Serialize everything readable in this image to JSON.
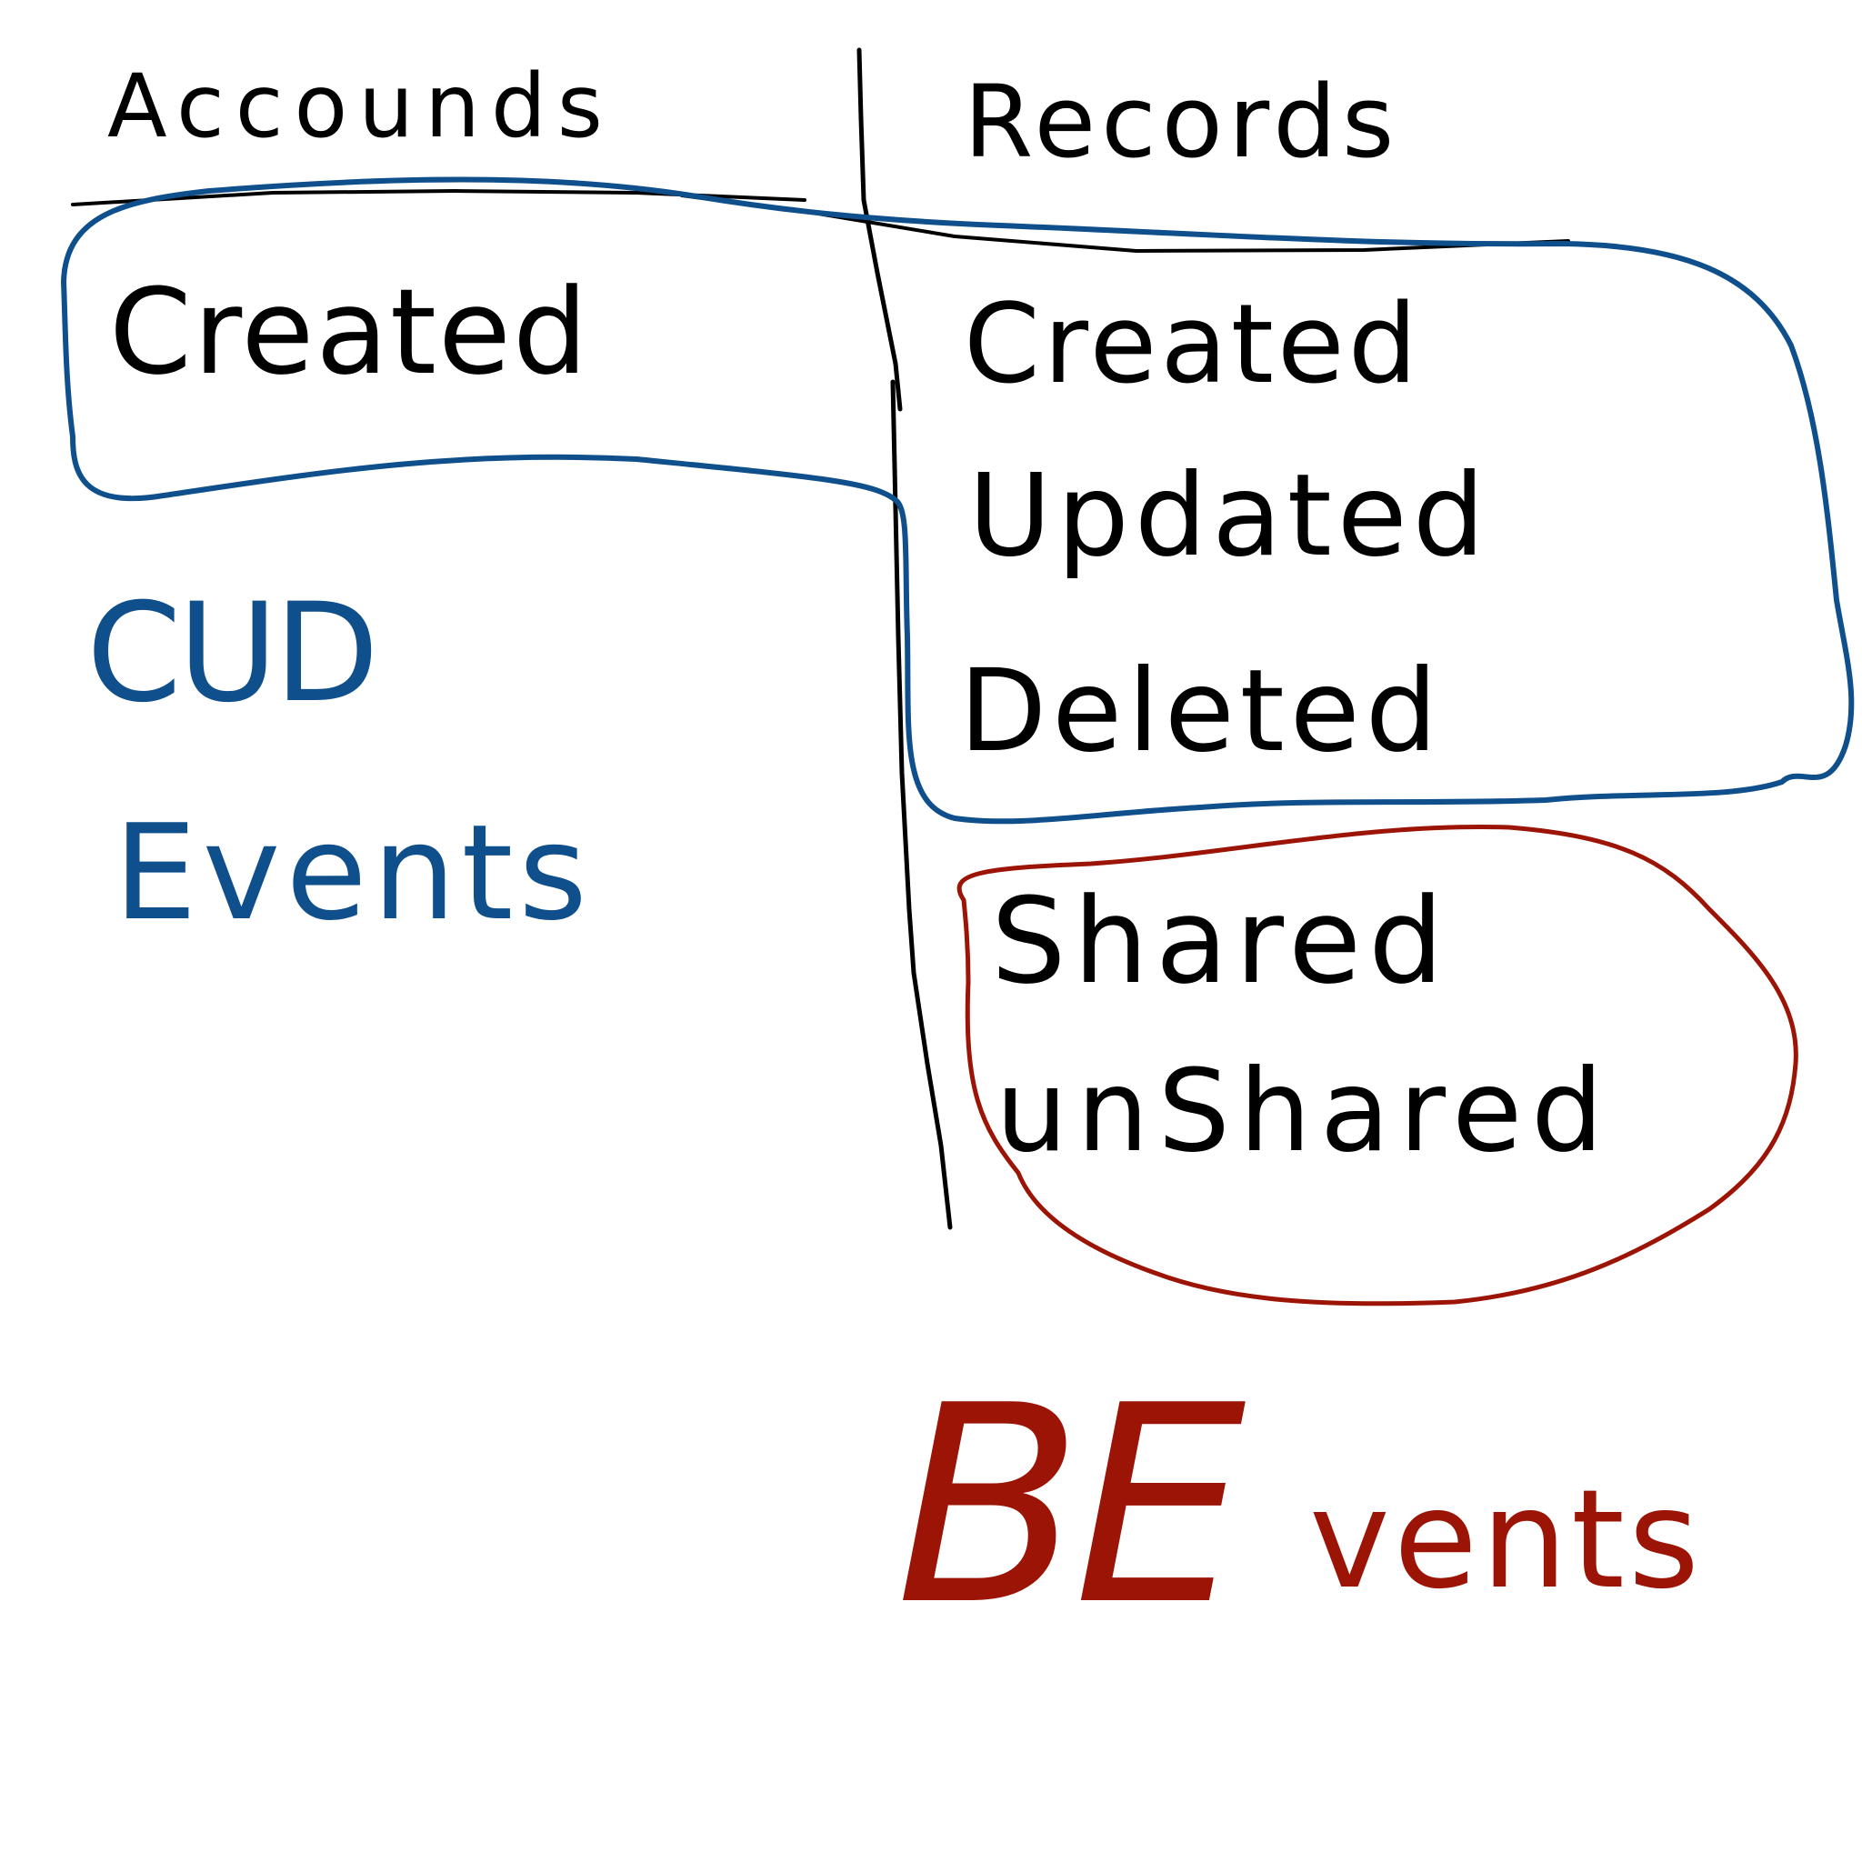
{
  "colors": {
    "ink": "#000000",
    "blue": "#0e4f8c",
    "red": "#9b1405",
    "background": "#ffffff"
  },
  "columns": {
    "accounts": {
      "header": "Accounds",
      "items": [
        "Created"
      ]
    },
    "records": {
      "header": "Records",
      "items": [
        "Created",
        "Updated",
        "Deleted",
        "Shared",
        "unShared"
      ]
    }
  },
  "labels": {
    "cud_line1": "CUD",
    "cud_line2": "Events",
    "be_prefix": "BE",
    "be_suffix": "vents"
  }
}
